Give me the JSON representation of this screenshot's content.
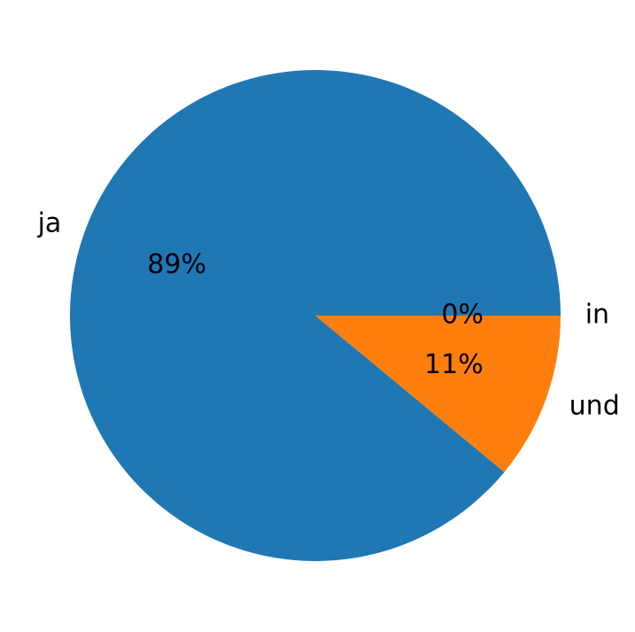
{
  "chart_data": {
    "type": "pie",
    "categories": [
      "ja",
      "und",
      "in"
    ],
    "values": [
      89,
      11,
      0
    ],
    "value_labels": [
      "89%",
      "11%",
      "0%"
    ],
    "colors": [
      "#1f77b4",
      "#ff7f0e",
      "#2ca02c"
    ]
  }
}
